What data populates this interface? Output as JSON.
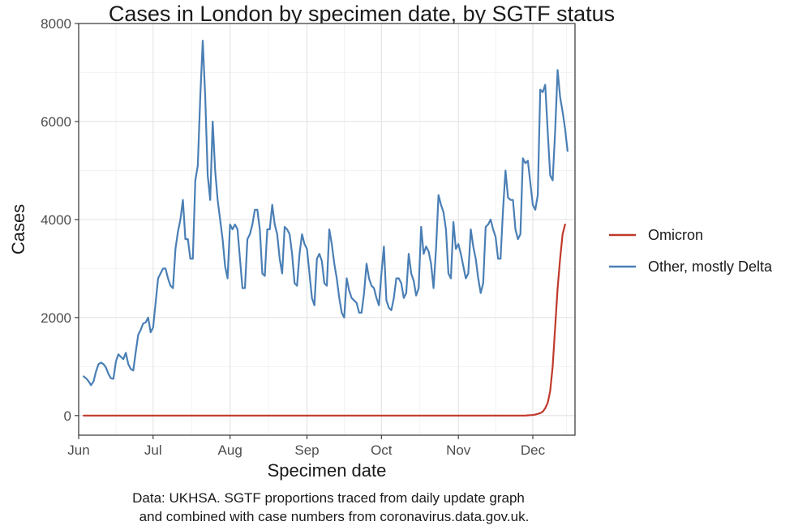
{
  "chart_data": {
    "type": "line",
    "title": "Cases in London by specimen date, by SGTF status",
    "xlabel": "Specimen date",
    "ylabel": "Cases",
    "caption": [
      "Data: UKHSA. SGTF proportions traced from daily update graph",
      "and combined with case numbers from coronavirus.data.gov.uk."
    ],
    "x_ticks": [
      "Jun",
      "Jul",
      "Aug",
      "Sep",
      "Oct",
      "Nov",
      "Dec"
    ],
    "x_tick_days": [
      0,
      30,
      61,
      92,
      122,
      153,
      183
    ],
    "xlim_days": [
      0,
      200
    ],
    "y_ticks": [
      "0",
      "2000",
      "4000",
      "6000",
      "8000"
    ],
    "y_tick_values": [
      0,
      2000,
      4000,
      6000,
      8000
    ],
    "ylim": [
      -400,
      8000
    ],
    "grid": true,
    "legend_position": "right",
    "series": [
      {
        "name": "Omicron",
        "color": "#c0392b",
        "x_start_day": 2,
        "values": [
          0,
          0,
          0,
          0,
          0,
          0,
          0,
          0,
          0,
          0,
          0,
          0,
          0,
          0,
          0,
          0,
          0,
          0,
          0,
          0,
          0,
          0,
          0,
          0,
          0,
          0,
          0,
          0,
          0,
          0,
          0,
          0,
          0,
          0,
          0,
          0,
          0,
          0,
          0,
          0,
          0,
          0,
          0,
          0,
          0,
          0,
          0,
          0,
          0,
          0,
          0,
          0,
          0,
          0,
          0,
          0,
          0,
          0,
          0,
          0,
          0,
          0,
          0,
          0,
          0,
          0,
          0,
          0,
          0,
          0,
          0,
          0,
          0,
          0,
          0,
          0,
          0,
          0,
          0,
          0,
          0,
          0,
          0,
          0,
          0,
          0,
          0,
          0,
          0,
          0,
          0,
          0,
          0,
          0,
          0,
          0,
          0,
          0,
          0,
          0,
          0,
          0,
          0,
          0,
          0,
          0,
          0,
          0,
          0,
          0,
          0,
          0,
          0,
          0,
          0,
          0,
          0,
          0,
          0,
          0,
          0,
          0,
          0,
          0,
          0,
          0,
          0,
          0,
          0,
          0,
          0,
          0,
          0,
          0,
          0,
          0,
          0,
          0,
          0,
          0,
          0,
          0,
          0,
          0,
          0,
          0,
          0,
          0,
          0,
          0,
          0,
          0,
          0,
          0,
          0,
          0,
          0,
          0,
          0,
          0,
          0,
          0,
          0,
          0,
          0,
          0,
          0,
          0,
          0,
          0,
          0,
          0,
          0,
          0,
          0,
          0,
          0,
          0,
          0,
          5,
          8,
          12,
          20,
          35,
          50,
          80,
          150,
          260,
          500,
          1000,
          1800,
          2600,
          3200,
          3700,
          3900
        ]
      },
      {
        "name": "Other, mostly Delta",
        "color": "#4a7fb5",
        "x_start_day": 2,
        "values": [
          800,
          760,
          700,
          620,
          700,
          900,
          1050,
          1080,
          1050,
          980,
          850,
          760,
          750,
          1100,
          1250,
          1200,
          1150,
          1280,
          1050,
          950,
          920,
          1300,
          1650,
          1750,
          1880,
          1900,
          2000,
          1700,
          1800,
          2300,
          2800,
          2900,
          3000,
          3000,
          2800,
          2650,
          2600,
          3400,
          3750,
          4000,
          4400,
          3600,
          3600,
          3200,
          3200,
          4800,
          5100,
          6500,
          7650,
          6500,
          4900,
          4400,
          6000,
          5000,
          4400,
          4000,
          3600,
          3050,
          2800,
          3900,
          3800,
          3900,
          3800,
          3200,
          2600,
          2600,
          3600,
          3700,
          3900,
          4200,
          4200,
          3800,
          2900,
          2850,
          3800,
          3800,
          4300,
          3900,
          3700,
          3200,
          2900,
          3850,
          3800,
          3700,
          3300,
          2700,
          2650,
          3300,
          3700,
          3500,
          3400,
          2900,
          2400,
          2250,
          3200,
          3300,
          3150,
          2700,
          2650,
          3800,
          3500,
          3100,
          2800,
          2400,
          2100,
          2000,
          2800,
          2550,
          2400,
          2350,
          2300,
          2100,
          2100,
          2500,
          3100,
          2800,
          2650,
          2600,
          2400,
          2250,
          2900,
          3450,
          2350,
          2200,
          2150,
          2400,
          2800,
          2800,
          2700,
          2400,
          2500,
          3300,
          2900,
          2750,
          2450,
          2600,
          3850,
          3300,
          3450,
          3350,
          3100,
          2600,
          3400,
          4500,
          4300,
          4150,
          3800,
          2900,
          2800,
          3950,
          3400,
          3500,
          3300,
          3050,
          2800,
          2900,
          3800,
          3450,
          3200,
          2800,
          2500,
          2700,
          3850,
          3900,
          4000,
          3800,
          3650,
          3200,
          3200,
          4200,
          5000,
          4450,
          4400,
          4400,
          3800,
          3600,
          3700,
          5250,
          5150,
          5200,
          4750,
          4300,
          4200,
          4500,
          6650,
          6600,
          6750,
          5800,
          4900,
          4800,
          5800,
          7050,
          6500,
          6200,
          5850,
          5400
        ]
      }
    ]
  }
}
